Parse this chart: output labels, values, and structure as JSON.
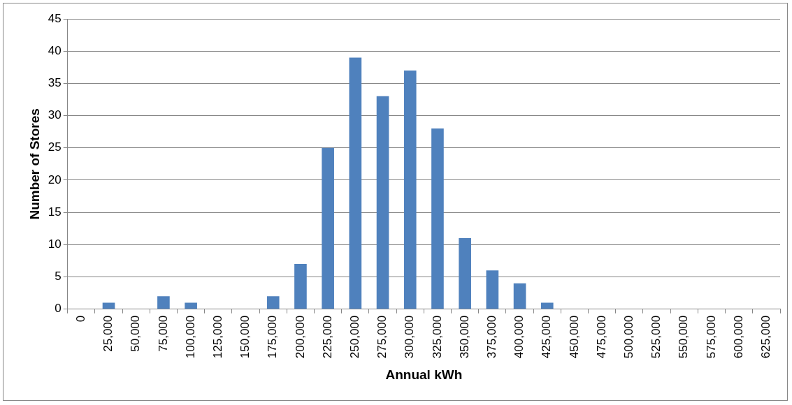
{
  "chart_data": {
    "type": "bar",
    "xlabel": "Annual kWh",
    "ylabel": "Number of Stores",
    "categories": [
      "0",
      "25,000",
      "50,000",
      "75,000",
      "100,000",
      "125,000",
      "150,000",
      "175,000",
      "200,000",
      "225,000",
      "250,000",
      "275,000",
      "300,000",
      "325,000",
      "350,000",
      "375,000",
      "400,000",
      "425,000",
      "450,000",
      "475,000",
      "500,000",
      "525,000",
      "550,000",
      "575,000",
      "600,000",
      "625,000"
    ],
    "values": [
      0,
      1,
      0,
      2,
      1,
      0,
      0,
      2,
      7,
      25,
      39,
      33,
      37,
      28,
      11,
      6,
      4,
      1,
      0,
      0,
      0,
      0,
      0,
      0,
      0,
      0
    ],
    "color": "#4f81bd",
    "ylim": [
      0,
      45
    ],
    "yticks": [
      0,
      5,
      10,
      15,
      20,
      25,
      30,
      35,
      40,
      45
    ],
    "grid": "y"
  }
}
